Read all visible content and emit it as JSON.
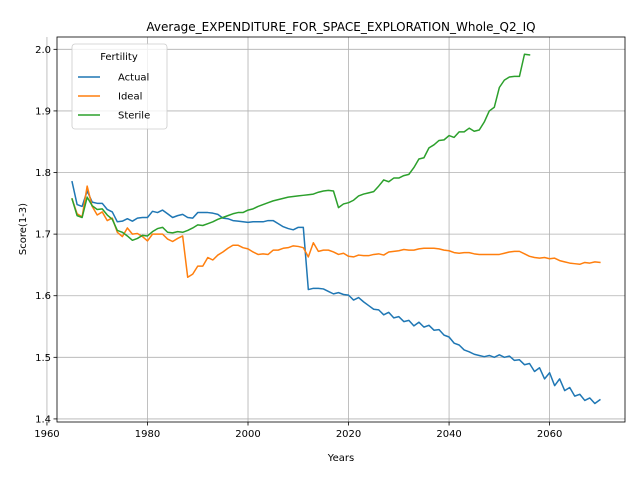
{
  "chart_data": {
    "type": "line",
    "title": "Average_EXPENDITURE_FOR_SPACE_EXPLORATION_Whole_Q2_IQ",
    "xlabel": "Years",
    "ylabel": "Score(1-3)",
    "xlim": [
      1962,
      2075
    ],
    "ylim": [
      1.395,
      2.02
    ],
    "xticks": [
      1960,
      1980,
      2000,
      2020,
      2040,
      2060
    ],
    "yticks": [
      1.4,
      1.5,
      1.6,
      1.7,
      1.8,
      1.9,
      2.0
    ],
    "grid": true,
    "legend": {
      "title": "Fertility",
      "placement": "top-left"
    },
    "series": [
      {
        "name": "Actual",
        "color": "#1f77b4",
        "points": [
          [
            1965,
            1.785
          ],
          [
            1966,
            1.748
          ],
          [
            1967,
            1.745
          ],
          [
            1968,
            1.77
          ],
          [
            1969,
            1.752
          ],
          [
            1970,
            1.75
          ],
          [
            1971,
            1.75
          ],
          [
            1972,
            1.74
          ],
          [
            1973,
            1.736
          ],
          [
            1974,
            1.72
          ],
          [
            1975,
            1.721
          ],
          [
            1976,
            1.725
          ],
          [
            1977,
            1.721
          ],
          [
            1978,
            1.726
          ],
          [
            1979,
            1.727
          ],
          [
            1980,
            1.727
          ],
          [
            1981,
            1.737
          ],
          [
            1982,
            1.735
          ],
          [
            1983,
            1.739
          ],
          [
            1984,
            1.733
          ],
          [
            1985,
            1.727
          ],
          [
            1986,
            1.73
          ],
          [
            1987,
            1.732
          ],
          [
            1988,
            1.727
          ],
          [
            1989,
            1.726
          ],
          [
            1990,
            1.735
          ],
          [
            1991,
            1.735
          ],
          [
            1992,
            1.735
          ],
          [
            1993,
            1.734
          ],
          [
            1994,
            1.732
          ],
          [
            1995,
            1.726
          ],
          [
            1996,
            1.725
          ],
          [
            1997,
            1.722
          ],
          [
            1998,
            1.721
          ],
          [
            1999,
            1.72
          ],
          [
            2000,
            1.719
          ],
          [
            2001,
            1.72
          ],
          [
            2002,
            1.72
          ],
          [
            2003,
            1.72
          ],
          [
            2004,
            1.722
          ],
          [
            2005,
            1.722
          ],
          [
            2006,
            1.717
          ],
          [
            2007,
            1.712
          ],
          [
            2008,
            1.709
          ],
          [
            2009,
            1.707
          ],
          [
            2010,
            1.711
          ],
          [
            2011,
            1.711
          ],
          [
            2012,
            1.61
          ],
          [
            2013,
            1.612
          ],
          [
            2014,
            1.612
          ],
          [
            2015,
            1.611
          ],
          [
            2016,
            1.607
          ],
          [
            2017,
            1.603
          ],
          [
            2018,
            1.605
          ],
          [
            2019,
            1.602
          ],
          [
            2020,
            1.601
          ],
          [
            2021,
            1.593
          ],
          [
            2022,
            1.597
          ],
          [
            2023,
            1.59
          ],
          [
            2024,
            1.584
          ],
          [
            2025,
            1.578
          ],
          [
            2026,
            1.577
          ],
          [
            2027,
            1.569
          ],
          [
            2028,
            1.573
          ],
          [
            2029,
            1.564
          ],
          [
            2030,
            1.566
          ],
          [
            2031,
            1.558
          ],
          [
            2032,
            1.56
          ],
          [
            2033,
            1.551
          ],
          [
            2034,
            1.557
          ],
          [
            2035,
            1.549
          ],
          [
            2036,
            1.552
          ],
          [
            2037,
            1.544
          ],
          [
            2038,
            1.545
          ],
          [
            2039,
            1.536
          ],
          [
            2040,
            1.533
          ],
          [
            2041,
            1.523
          ],
          [
            2042,
            1.52
          ],
          [
            2043,
            1.512
          ],
          [
            2044,
            1.509
          ],
          [
            2045,
            1.505
          ],
          [
            2046,
            1.503
          ],
          [
            2047,
            1.501
          ],
          [
            2048,
            1.503
          ],
          [
            2049,
            1.5
          ],
          [
            2050,
            1.504
          ],
          [
            2051,
            1.5
          ],
          [
            2052,
            1.502
          ],
          [
            2053,
            1.495
          ],
          [
            2054,
            1.496
          ],
          [
            2055,
            1.488
          ],
          [
            2056,
            1.49
          ],
          [
            2057,
            1.477
          ],
          [
            2058,
            1.483
          ],
          [
            2059,
            1.465
          ],
          [
            2060,
            1.475
          ],
          [
            2061,
            1.454
          ],
          [
            2062,
            1.465
          ],
          [
            2063,
            1.446
          ],
          [
            2064,
            1.451
          ],
          [
            2065,
            1.437
          ],
          [
            2066,
            1.44
          ],
          [
            2067,
            1.43
          ],
          [
            2068,
            1.434
          ],
          [
            2069,
            1.425
          ],
          [
            2070,
            1.431
          ]
        ]
      },
      {
        "name": "Ideal",
        "color": "#ff7f0e",
        "points": [
          [
            1965,
            1.757
          ],
          [
            1966,
            1.733
          ],
          [
            1967,
            1.728
          ],
          [
            1968,
            1.778
          ],
          [
            1969,
            1.745
          ],
          [
            1970,
            1.731
          ],
          [
            1971,
            1.736
          ],
          [
            1972,
            1.722
          ],
          [
            1973,
            1.726
          ],
          [
            1974,
            1.703
          ],
          [
            1975,
            1.696
          ],
          [
            1976,
            1.71
          ],
          [
            1977,
            1.7
          ],
          [
            1978,
            1.701
          ],
          [
            1979,
            1.696
          ],
          [
            1980,
            1.689
          ],
          [
            1981,
            1.7
          ],
          [
            1982,
            1.7
          ],
          [
            1983,
            1.7
          ],
          [
            1984,
            1.692
          ],
          [
            1985,
            1.688
          ],
          [
            1986,
            1.693
          ],
          [
            1987,
            1.697
          ],
          [
            1988,
            1.63
          ],
          [
            1989,
            1.635
          ],
          [
            1990,
            1.648
          ],
          [
            1991,
            1.648
          ],
          [
            1992,
            1.662
          ],
          [
            1993,
            1.658
          ],
          [
            1994,
            1.666
          ],
          [
            1995,
            1.671
          ],
          [
            1996,
            1.677
          ],
          [
            1997,
            1.682
          ],
          [
            1998,
            1.682
          ],
          [
            1999,
            1.678
          ],
          [
            2000,
            1.676
          ],
          [
            2001,
            1.671
          ],
          [
            2002,
            1.667
          ],
          [
            2003,
            1.668
          ],
          [
            2004,
            1.667
          ],
          [
            2005,
            1.674
          ],
          [
            2006,
            1.674
          ],
          [
            2007,
            1.677
          ],
          [
            2008,
            1.678
          ],
          [
            2009,
            1.681
          ],
          [
            2010,
            1.68
          ],
          [
            2011,
            1.678
          ],
          [
            2012,
            1.663
          ],
          [
            2013,
            1.686
          ],
          [
            2014,
            1.672
          ],
          [
            2015,
            1.674
          ],
          [
            2016,
            1.674
          ],
          [
            2017,
            1.671
          ],
          [
            2018,
            1.667
          ],
          [
            2019,
            1.669
          ],
          [
            2020,
            1.664
          ],
          [
            2021,
            1.663
          ],
          [
            2022,
            1.666
          ],
          [
            2023,
            1.665
          ],
          [
            2024,
            1.665
          ],
          [
            2025,
            1.667
          ],
          [
            2026,
            1.668
          ],
          [
            2027,
            1.666
          ],
          [
            2028,
            1.671
          ],
          [
            2029,
            1.672
          ],
          [
            2030,
            1.673
          ],
          [
            2031,
            1.675
          ],
          [
            2032,
            1.674
          ],
          [
            2033,
            1.674
          ],
          [
            2034,
            1.676
          ],
          [
            2035,
            1.677
          ],
          [
            2036,
            1.677
          ],
          [
            2037,
            1.677
          ],
          [
            2038,
            1.676
          ],
          [
            2039,
            1.674
          ],
          [
            2040,
            1.673
          ],
          [
            2041,
            1.67
          ],
          [
            2042,
            1.669
          ],
          [
            2043,
            1.67
          ],
          [
            2044,
            1.67
          ],
          [
            2045,
            1.668
          ],
          [
            2046,
            1.667
          ],
          [
            2047,
            1.667
          ],
          [
            2048,
            1.667
          ],
          [
            2049,
            1.667
          ],
          [
            2050,
            1.667
          ],
          [
            2051,
            1.669
          ],
          [
            2052,
            1.671
          ],
          [
            2053,
            1.672
          ],
          [
            2054,
            1.672
          ],
          [
            2055,
            1.668
          ],
          [
            2056,
            1.664
          ],
          [
            2057,
            1.662
          ],
          [
            2058,
            1.661
          ],
          [
            2059,
            1.662
          ],
          [
            2060,
            1.66
          ],
          [
            2061,
            1.661
          ],
          [
            2062,
            1.657
          ],
          [
            2063,
            1.655
          ],
          [
            2064,
            1.653
          ],
          [
            2065,
            1.652
          ],
          [
            2066,
            1.651
          ],
          [
            2067,
            1.654
          ],
          [
            2068,
            1.653
          ],
          [
            2069,
            1.655
          ],
          [
            2070,
            1.654
          ]
        ]
      },
      {
        "name": "Sterile",
        "color": "#2ca02c",
        "points": [
          [
            1965,
            1.757
          ],
          [
            1966,
            1.73
          ],
          [
            1967,
            1.727
          ],
          [
            1968,
            1.76
          ],
          [
            1969,
            1.746
          ],
          [
            1970,
            1.74
          ],
          [
            1971,
            1.741
          ],
          [
            1972,
            1.731
          ],
          [
            1973,
            1.724
          ],
          [
            1974,
            1.706
          ],
          [
            1975,
            1.703
          ],
          [
            1976,
            1.697
          ],
          [
            1977,
            1.69
          ],
          [
            1978,
            1.693
          ],
          [
            1979,
            1.698
          ],
          [
            1980,
            1.697
          ],
          [
            1981,
            1.704
          ],
          [
            1982,
            1.709
          ],
          [
            1983,
            1.711
          ],
          [
            1984,
            1.703
          ],
          [
            1985,
            1.702
          ],
          [
            1986,
            1.704
          ],
          [
            1987,
            1.703
          ],
          [
            1988,
            1.706
          ],
          [
            1989,
            1.71
          ],
          [
            1990,
            1.715
          ],
          [
            1991,
            1.714
          ],
          [
            1992,
            1.717
          ],
          [
            1993,
            1.72
          ],
          [
            1994,
            1.724
          ],
          [
            1995,
            1.727
          ],
          [
            1996,
            1.73
          ],
          [
            1997,
            1.733
          ],
          [
            1998,
            1.735
          ],
          [
            1999,
            1.735
          ],
          [
            2000,
            1.739
          ],
          [
            2001,
            1.741
          ],
          [
            2002,
            1.745
          ],
          [
            2003,
            1.748
          ],
          [
            2004,
            1.751
          ],
          [
            2005,
            1.754
          ],
          [
            2006,
            1.756
          ],
          [
            2007,
            1.758
          ],
          [
            2008,
            1.76
          ],
          [
            2009,
            1.761
          ],
          [
            2010,
            1.762
          ],
          [
            2011,
            1.763
          ],
          [
            2012,
            1.764
          ],
          [
            2013,
            1.765
          ],
          [
            2014,
            1.768
          ],
          [
            2015,
            1.77
          ],
          [
            2016,
            1.771
          ],
          [
            2017,
            1.77
          ],
          [
            2018,
            1.743
          ],
          [
            2019,
            1.749
          ],
          [
            2020,
            1.751
          ],
          [
            2021,
            1.755
          ],
          [
            2022,
            1.762
          ],
          [
            2023,
            1.765
          ],
          [
            2024,
            1.767
          ],
          [
            2025,
            1.769
          ],
          [
            2026,
            1.778
          ],
          [
            2027,
            1.788
          ],
          [
            2028,
            1.785
          ],
          [
            2029,
            1.791
          ],
          [
            2030,
            1.791
          ],
          [
            2031,
            1.795
          ],
          [
            2032,
            1.797
          ],
          [
            2033,
            1.808
          ],
          [
            2034,
            1.822
          ],
          [
            2035,
            1.824
          ],
          [
            2036,
            1.84
          ],
          [
            2037,
            1.845
          ],
          [
            2038,
            1.852
          ],
          [
            2039,
            1.853
          ],
          [
            2040,
            1.86
          ],
          [
            2041,
            1.857
          ],
          [
            2042,
            1.866
          ],
          [
            2043,
            1.866
          ],
          [
            2044,
            1.872
          ],
          [
            2045,
            1.867
          ],
          [
            2046,
            1.869
          ],
          [
            2047,
            1.882
          ],
          [
            2048,
            1.9
          ],
          [
            2049,
            1.906
          ],
          [
            2050,
            1.938
          ],
          [
            2051,
            1.95
          ],
          [
            2052,
            1.955
          ],
          [
            2053,
            1.956
          ],
          [
            2054,
            1.956
          ],
          [
            2055,
            1.992
          ],
          [
            2056,
            1.991
          ]
        ]
      }
    ]
  }
}
